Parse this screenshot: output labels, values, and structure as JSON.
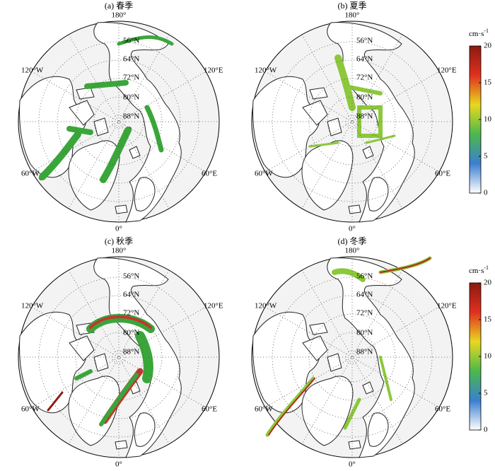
{
  "panels": [
    {
      "title": "(a) 春季"
    },
    {
      "title": "(b) 夏季"
    },
    {
      "title": "(c) 秋季"
    },
    {
      "title": "(d) 冬季"
    }
  ],
  "map_labels": {
    "top": "180°",
    "lats": [
      "56°N",
      "64°N",
      "72°N",
      "80°N",
      "88°N"
    ],
    "upper_left": "120°W",
    "upper_right": "120°E",
    "lower_left": "60°W",
    "lower_right": "60°E",
    "bottom": "0°"
  },
  "colorbar": {
    "unit": "cm·s",
    "unit_exp": "-1",
    "lim": [
      0,
      20
    ],
    "ticks": [
      0,
      5,
      10,
      15,
      20
    ],
    "colors": [
      "#ffffff",
      "#3a7fd0",
      "#4cb84c",
      "#e8d820",
      "#e03020",
      "#8b1a10"
    ]
  }
}
